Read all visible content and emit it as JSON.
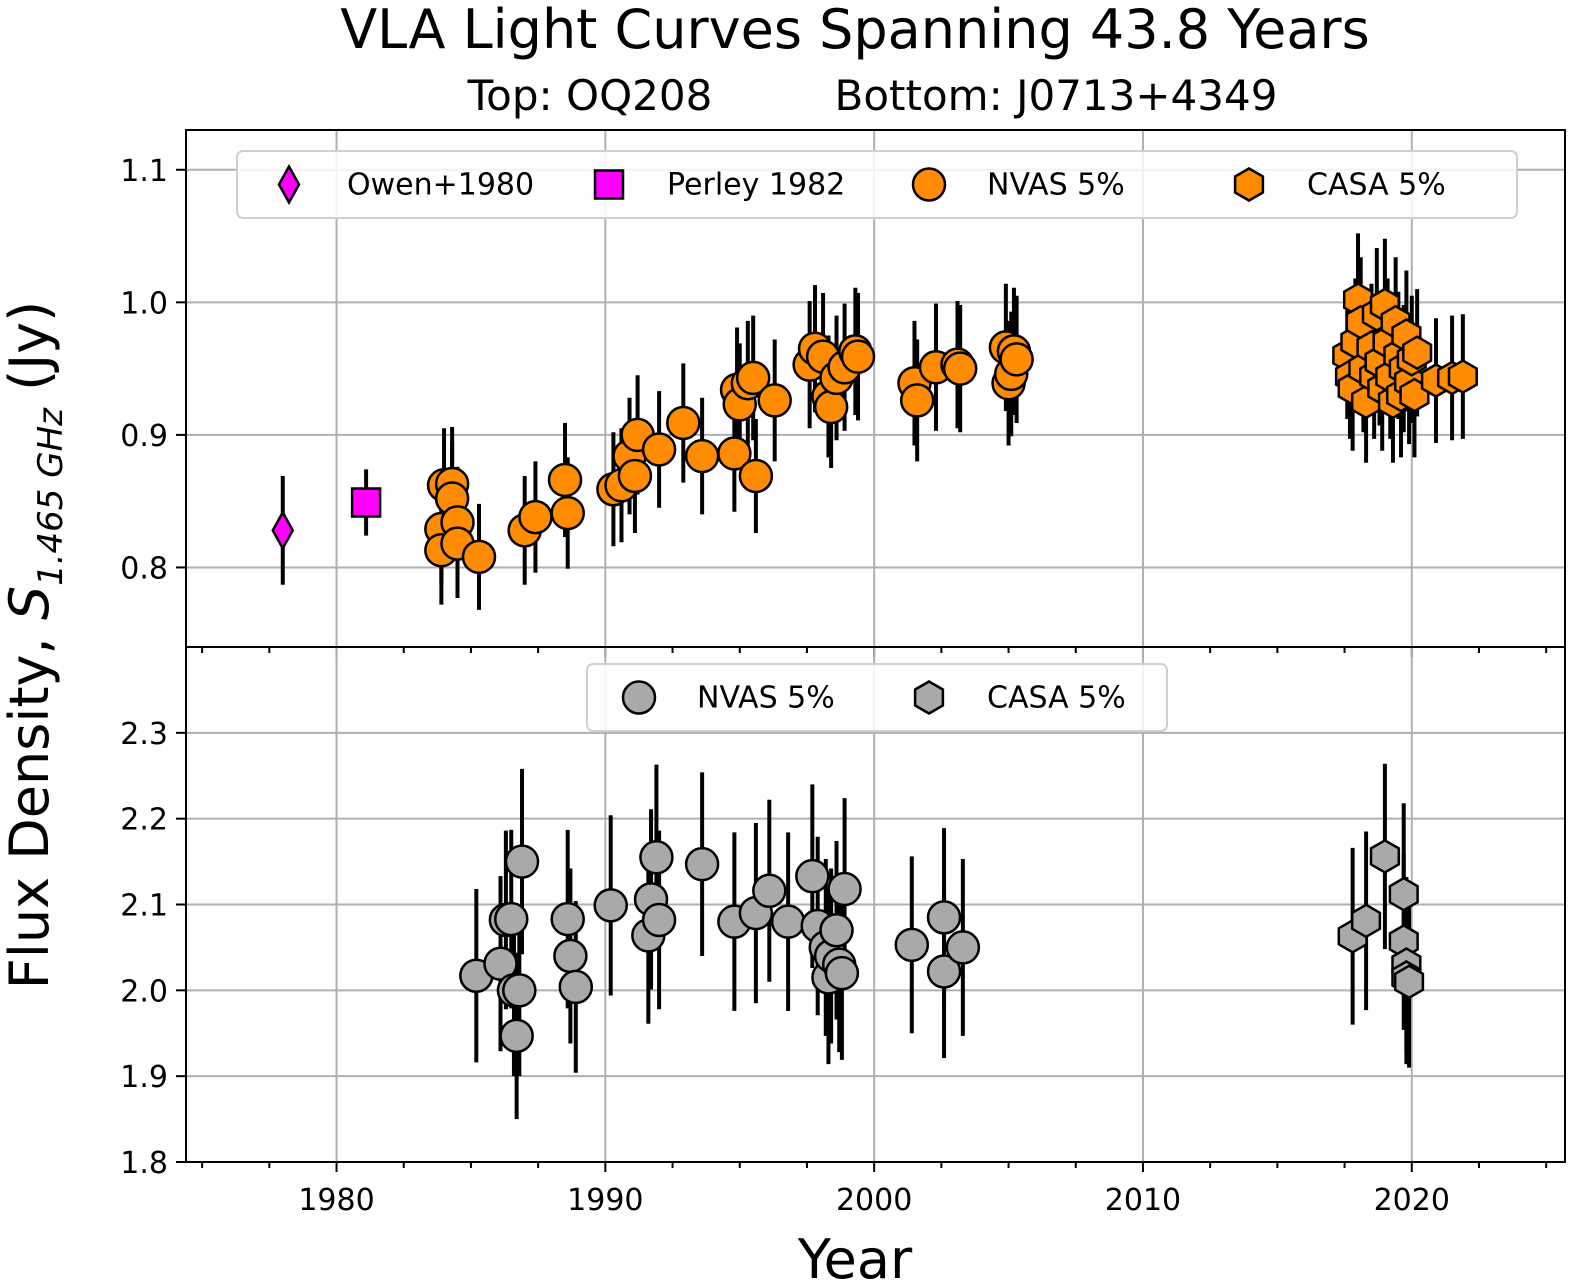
{
  "figure": {
    "title": "VLA Light Curves Spanning 43.8 Years",
    "subtitle_top": "Top: OQ208",
    "subtitle_bottom": "Bottom: J0713+4349",
    "xlabel": "Year",
    "ylabel_main": "Flux Density, ",
    "ylabel_symbol": "S",
    "ylabel_subscript": "1.465 GHz",
    "ylabel_unit": " (Jy)"
  },
  "colors": {
    "magenta": "#ff00ff",
    "orange": "#ff8c00",
    "gray": "#a9a9a9",
    "grid": "#b0b0b0",
    "errorbar": "#000000"
  },
  "chart_data": [
    {
      "type": "scatter",
      "panel": "top",
      "source": "OQ208",
      "xlim": [
        1974.4,
        2025.7
      ],
      "ylim": [
        0.74,
        1.13
      ],
      "xticks": [
        1980,
        1990,
        2000,
        2010,
        2020
      ],
      "yticks": [
        0.8,
        0.9,
        1.0,
        1.1
      ],
      "ytick_labels": [
        "0.8",
        "0.9",
        "1.0",
        "1.1"
      ],
      "grid": true,
      "legend_position": "top",
      "series": [
        {
          "name": "Owen+1980",
          "marker": "diamond",
          "color": "#ff00ff",
          "points": [
            {
              "x": 1978.0,
              "y": 0.828,
              "err": 0.041
            }
          ]
        },
        {
          "name": "Perley 1982",
          "marker": "square",
          "color": "#ff00ff",
          "points": [
            {
              "x": 1981.1,
              "y": 0.849,
              "err": 0.025
            }
          ]
        },
        {
          "name": "NVAS 5%",
          "marker": "circle",
          "color": "#ff8c00",
          "points": [
            {
              "x": 1984.0,
              "y": 0.862,
              "err": 0.043
            },
            {
              "x": 1983.9,
              "y": 0.829,
              "err": 0.041
            },
            {
              "x": 1983.9,
              "y": 0.813,
              "err": 0.041
            },
            {
              "x": 1984.3,
              "y": 0.863,
              "err": 0.043
            },
            {
              "x": 1984.3,
              "y": 0.852,
              "err": 0.043
            },
            {
              "x": 1984.5,
              "y": 0.834,
              "err": 0.042
            },
            {
              "x": 1984.5,
              "y": 0.818,
              "err": 0.041
            },
            {
              "x": 1985.3,
              "y": 0.808,
              "err": 0.04
            },
            {
              "x": 1987.0,
              "y": 0.828,
              "err": 0.041
            },
            {
              "x": 1987.4,
              "y": 0.838,
              "err": 0.042
            },
            {
              "x": 1988.5,
              "y": 0.866,
              "err": 0.043
            },
            {
              "x": 1988.6,
              "y": 0.841,
              "err": 0.042
            },
            {
              "x": 1990.3,
              "y": 0.859,
              "err": 0.043
            },
            {
              "x": 1990.6,
              "y": 0.862,
              "err": 0.043
            },
            {
              "x": 1990.9,
              "y": 0.884,
              "err": 0.044
            },
            {
              "x": 1991.1,
              "y": 0.869,
              "err": 0.043
            },
            {
              "x": 1991.2,
              "y": 0.9,
              "err": 0.045
            },
            {
              "x": 1992.0,
              "y": 0.889,
              "err": 0.044
            },
            {
              "x": 1992.9,
              "y": 0.909,
              "err": 0.045
            },
            {
              "x": 1993.6,
              "y": 0.884,
              "err": 0.044
            },
            {
              "x": 1994.8,
              "y": 0.886,
              "err": 0.044
            },
            {
              "x": 1994.9,
              "y": 0.934,
              "err": 0.047
            },
            {
              "x": 1995.0,
              "y": 0.923,
              "err": 0.046
            },
            {
              "x": 1995.3,
              "y": 0.939,
              "err": 0.047
            },
            {
              "x": 1995.5,
              "y": 0.943,
              "err": 0.047
            },
            {
              "x": 1995.6,
              "y": 0.869,
              "err": 0.043
            },
            {
              "x": 1996.3,
              "y": 0.926,
              "err": 0.046
            },
            {
              "x": 1997.6,
              "y": 0.953,
              "err": 0.048
            },
            {
              "x": 1997.8,
              "y": 0.965,
              "err": 0.048
            },
            {
              "x": 1998.1,
              "y": 0.959,
              "err": 0.048
            },
            {
              "x": 1998.3,
              "y": 0.929,
              "err": 0.046
            },
            {
              "x": 1998.4,
              "y": 0.921,
              "err": 0.046
            },
            {
              "x": 1998.6,
              "y": 0.943,
              "err": 0.047
            },
            {
              "x": 1998.9,
              "y": 0.951,
              "err": 0.048
            },
            {
              "x": 1999.3,
              "y": 0.963,
              "err": 0.048
            },
            {
              "x": 1999.4,
              "y": 0.959,
              "err": 0.048
            },
            {
              "x": 2001.5,
              "y": 0.939,
              "err": 0.047
            },
            {
              "x": 2001.6,
              "y": 0.926,
              "err": 0.046
            },
            {
              "x": 2002.3,
              "y": 0.951,
              "err": 0.048
            },
            {
              "x": 2003.1,
              "y": 0.953,
              "err": 0.048
            },
            {
              "x": 2003.2,
              "y": 0.95,
              "err": 0.048
            },
            {
              "x": 2004.9,
              "y": 0.966,
              "err": 0.048
            },
            {
              "x": 2005.0,
              "y": 0.939,
              "err": 0.047
            },
            {
              "x": 2005.1,
              "y": 0.946,
              "err": 0.047
            },
            {
              "x": 2005.2,
              "y": 0.963,
              "err": 0.048
            },
            {
              "x": 2005.3,
              "y": 0.957,
              "err": 0.048
            }
          ]
        },
        {
          "name": "CASA 5%",
          "marker": "hexagon",
          "color": "#ff8c00",
          "points": [
            {
              "x": 2017.6,
              "y": 0.96,
              "err": 0.048
            },
            {
              "x": 2017.7,
              "y": 0.944,
              "err": 0.047
            },
            {
              "x": 2017.8,
              "y": 0.935,
              "err": 0.047
            },
            {
              "x": 2017.9,
              "y": 0.97,
              "err": 0.048
            },
            {
              "x": 2018.0,
              "y": 1.002,
              "err": 0.05
            },
            {
              "x": 2018.1,
              "y": 0.985,
              "err": 0.049
            },
            {
              "x": 2018.2,
              "y": 0.95,
              "err": 0.048
            },
            {
              "x": 2018.3,
              "y": 0.925,
              "err": 0.046
            },
            {
              "x": 2018.5,
              "y": 0.966,
              "err": 0.048
            },
            {
              "x": 2018.6,
              "y": 0.944,
              "err": 0.047
            },
            {
              "x": 2018.7,
              "y": 0.991,
              "err": 0.05
            },
            {
              "x": 2018.8,
              "y": 0.955,
              "err": 0.048
            },
            {
              "x": 2018.9,
              "y": 0.935,
              "err": 0.047
            },
            {
              "x": 2019.0,
              "y": 0.998,
              "err": 0.05
            },
            {
              "x": 2019.1,
              "y": 0.97,
              "err": 0.048
            },
            {
              "x": 2019.2,
              "y": 0.944,
              "err": 0.047
            },
            {
              "x": 2019.3,
              "y": 0.925,
              "err": 0.046
            },
            {
              "x": 2019.4,
              "y": 0.985,
              "err": 0.049
            },
            {
              "x": 2019.5,
              "y": 0.96,
              "err": 0.048
            },
            {
              "x": 2019.6,
              "y": 0.93,
              "err": 0.047
            },
            {
              "x": 2019.7,
              "y": 0.95,
              "err": 0.048
            },
            {
              "x": 2019.8,
              "y": 0.975,
              "err": 0.049
            },
            {
              "x": 2019.9,
              "y": 0.94,
              "err": 0.047
            },
            {
              "x": 2020.0,
              "y": 0.957,
              "err": 0.048
            },
            {
              "x": 2020.1,
              "y": 0.93,
              "err": 0.047
            },
            {
              "x": 2020.2,
              "y": 0.962,
              "err": 0.048
            },
            {
              "x": 2020.9,
              "y": 0.941,
              "err": 0.047
            },
            {
              "x": 2021.5,
              "y": 0.943,
              "err": 0.047
            },
            {
              "x": 2021.9,
              "y": 0.944,
              "err": 0.047
            }
          ]
        }
      ]
    },
    {
      "type": "scatter",
      "panel": "bottom",
      "source": "J0713+4349",
      "xlim": [
        1974.4,
        2025.7
      ],
      "ylim": [
        1.8,
        2.4
      ],
      "xticks": [
        1980,
        1990,
        2000,
        2010,
        2020
      ],
      "xtick_labels": [
        "1980",
        "1990",
        "2000",
        "2010",
        "2020"
      ],
      "yticks": [
        1.8,
        1.9,
        2.0,
        2.1,
        2.2,
        2.3
      ],
      "ytick_labels": [
        "1.8",
        "1.9",
        "2.0",
        "2.1",
        "2.2",
        "2.3"
      ],
      "grid": true,
      "legend_position": "top",
      "series": [
        {
          "name": "NVAS 5%",
          "marker": "circle",
          "color": "#a9a9a9",
          "points": [
            {
              "x": 1985.2,
              "y": 2.017,
              "err": 0.101
            },
            {
              "x": 1986.1,
              "y": 2.031,
              "err": 0.102
            },
            {
              "x": 1986.3,
              "y": 2.082,
              "err": 0.104
            },
            {
              "x": 1986.5,
              "y": 2.083,
              "err": 0.104
            },
            {
              "x": 1986.6,
              "y": 2.0,
              "err": 0.1
            },
            {
              "x": 1986.7,
              "y": 1.947,
              "err": 0.097
            },
            {
              "x": 1986.8,
              "y": 2.0,
              "err": 0.1
            },
            {
              "x": 1986.9,
              "y": 2.15,
              "err": 0.108
            },
            {
              "x": 1988.6,
              "y": 2.083,
              "err": 0.104
            },
            {
              "x": 1988.7,
              "y": 2.04,
              "err": 0.102
            },
            {
              "x": 1988.9,
              "y": 2.004,
              "err": 0.1
            },
            {
              "x": 1990.2,
              "y": 2.099,
              "err": 0.105
            },
            {
              "x": 1991.6,
              "y": 2.064,
              "err": 0.103
            },
            {
              "x": 1991.7,
              "y": 2.106,
              "err": 0.105
            },
            {
              "x": 1991.9,
              "y": 2.155,
              "err": 0.108
            },
            {
              "x": 1992.0,
              "y": 2.082,
              "err": 0.104
            },
            {
              "x": 1993.6,
              "y": 2.147,
              "err": 0.107
            },
            {
              "x": 1994.8,
              "y": 2.08,
              "err": 0.104
            },
            {
              "x": 1995.6,
              "y": 2.09,
              "err": 0.105
            },
            {
              "x": 1996.1,
              "y": 2.116,
              "err": 0.106
            },
            {
              "x": 1996.8,
              "y": 2.08,
              "err": 0.104
            },
            {
              "x": 1997.7,
              "y": 2.133,
              "err": 0.107
            },
            {
              "x": 1997.9,
              "y": 2.075,
              "err": 0.104
            },
            {
              "x": 1998.2,
              "y": 2.05,
              "err": 0.103
            },
            {
              "x": 1998.3,
              "y": 2.015,
              "err": 0.101
            },
            {
              "x": 1998.4,
              "y": 2.04,
              "err": 0.102
            },
            {
              "x": 1998.6,
              "y": 2.07,
              "err": 0.104
            },
            {
              "x": 1998.7,
              "y": 2.03,
              "err": 0.102
            },
            {
              "x": 1998.8,
              "y": 2.02,
              "err": 0.101
            },
            {
              "x": 1998.9,
              "y": 2.118,
              "err": 0.106
            },
            {
              "x": 2001.4,
              "y": 2.053,
              "err": 0.103
            },
            {
              "x": 2002.6,
              "y": 2.085,
              "err": 0.104
            },
            {
              "x": 2002.6,
              "y": 2.022,
              "err": 0.101
            },
            {
              "x": 2003.3,
              "y": 2.05,
              "err": 0.103
            }
          ]
        },
        {
          "name": "CASA 5%",
          "marker": "hexagon",
          "color": "#a9a9a9",
          "points": [
            {
              "x": 2017.8,
              "y": 2.063,
              "err": 0.103
            },
            {
              "x": 2018.3,
              "y": 2.081,
              "err": 0.104
            },
            {
              "x": 2019.0,
              "y": 2.156,
              "err": 0.108
            },
            {
              "x": 2019.7,
              "y": 2.112,
              "err": 0.106
            },
            {
              "x": 2019.7,
              "y": 2.057,
              "err": 0.103
            },
            {
              "x": 2019.8,
              "y": 2.03,
              "err": 0.102
            },
            {
              "x": 2019.8,
              "y": 2.015,
              "err": 0.101
            },
            {
              "x": 2019.9,
              "y": 2.01,
              "err": 0.1
            }
          ]
        }
      ]
    }
  ]
}
